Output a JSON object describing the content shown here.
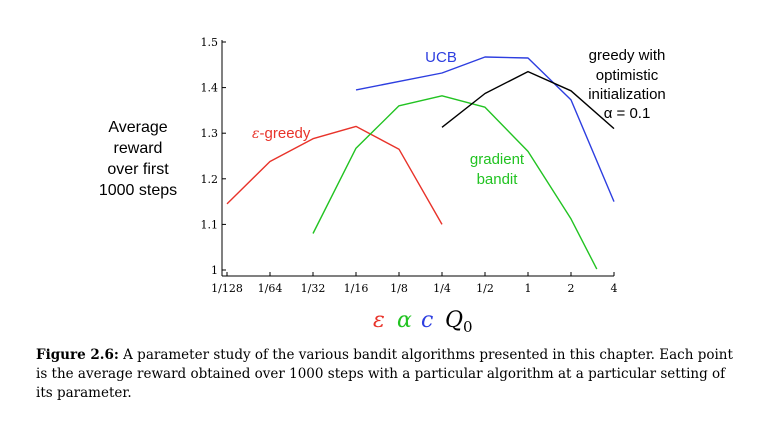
{
  "chart_data": {
    "type": "line",
    "title": "",
    "xlabel_symbols": [
      "ε",
      "α",
      "c",
      "Q"
    ],
    "xlabel_subscript": "0",
    "ylabel_lines": [
      "Average",
      "reward",
      "over first",
      "1000 steps"
    ],
    "x_ticks": [
      "1/128",
      "1/64",
      "1/32",
      "1/16",
      "1/8",
      "1/4",
      "1/2",
      "1",
      "2",
      "4"
    ],
    "y_ticks": [
      "1",
      "1.1",
      "1.2",
      "1.3",
      "1.4",
      "1.5"
    ],
    "ylim": [
      1.0,
      1.5
    ],
    "x_scale": "log2",
    "series": [
      {
        "name": "ε-greedy",
        "label_lines": [
          "-greedy"
        ],
        "label_prefix": "ε",
        "color": "#e8332a",
        "points": [
          [
            -7,
            1.145
          ],
          [
            -6,
            1.238
          ],
          [
            -5,
            1.288
          ],
          [
            -4,
            1.315
          ],
          [
            -3,
            1.265
          ],
          [
            -2,
            1.1
          ]
        ]
      },
      {
        "name": "gradient bandit",
        "label_lines": [
          "gradient",
          "bandit"
        ],
        "color": "#22c322",
        "points": [
          [
            -5,
            1.08
          ],
          [
            -4,
            1.267
          ],
          [
            -3,
            1.36
          ],
          [
            -2,
            1.382
          ],
          [
            -1,
            1.357
          ],
          [
            0,
            1.26
          ],
          [
            1,
            1.112
          ],
          [
            1.6,
            1.002
          ]
        ]
      },
      {
        "name": "UCB",
        "label_lines": [
          "UCB"
        ],
        "color": "#2d3ee0",
        "points": [
          [
            -4,
            1.395
          ],
          [
            -2,
            1.432
          ],
          [
            -1,
            1.467
          ],
          [
            0,
            1.465
          ],
          [
            1,
            1.373
          ],
          [
            2,
            1.15
          ]
        ]
      },
      {
        "name": "greedy with optimistic initialization α = 0.1",
        "label_lines": [
          "greedy with",
          "optimistic",
          "initialization",
          "α = 0.1"
        ],
        "color": "#000000",
        "points": [
          [
            -2,
            1.313
          ],
          [
            -1,
            1.387
          ],
          [
            0,
            1.435
          ],
          [
            1,
            1.393
          ],
          [
            2,
            1.31
          ]
        ]
      }
    ]
  },
  "caption": {
    "label": "Figure 2.6:",
    "text": " A parameter study of the various bandit algorithms presented in this chapter. Each point is the average reward obtained over 1000 steps with a particular algorithm at a particular setting of its parameter."
  }
}
